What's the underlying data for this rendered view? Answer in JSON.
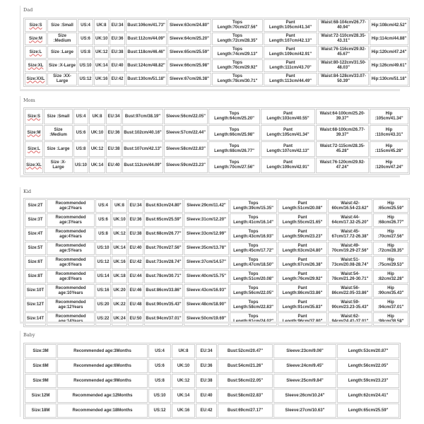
{
  "sections": [
    {
      "label": "Dad",
      "rows": [
        [
          "Size:S",
          "Size :Small",
          "US:4",
          "UK:8",
          "EU:34",
          "Bust:106cm/41.73\"",
          "Sleeve:63cm/24.80\"",
          "Tops Length:70cm/27.56\"",
          "Pant Length:105cm/41.34\"",
          "Waist:68-104cm/26.77-40.94\"",
          "Hip:108cm/42.52\""
        ],
        [
          "Size:M",
          "Size :Medium",
          "US:6",
          "UK:10",
          "EU:36",
          "Bust:112cm/44.09\"",
          "Sleeve:64cm/25.20\"",
          "Tops Length:72cm/28.35\"",
          "Pant Length:107cm/42.13\"",
          "Waist:72-110cm/28.35-43.31\"",
          "Hip:114cm/44.88\""
        ],
        [
          "Size:L",
          "Size :Large",
          "US:8",
          "UK:12",
          "EU:38",
          "Bust:118cm/46.46\"",
          "Sleeve:65cm/25.59\"",
          "Tops Length:74cm/29.13\"",
          "Pant Length:109cm/42.91\"",
          "Waist:76-116cm/29.92-45.67\"",
          "Hip:120cm/47.24\""
        ],
        [
          "Size:XL",
          "Size :X-Large",
          "US:10",
          "UK:14",
          "EU:40",
          "Bust:124cm/48.82\"",
          "Sleeve:66cm/25.98\"",
          "Tops Length:76cm/29.92\"",
          "Pant Length:111cm/43.70\"",
          "Waist:80-122cm/31.50-48.03\"",
          "Hip:126cm/49.61\""
        ],
        [
          "Size:XXL",
          "Size :XX-Large",
          "US:12",
          "UK:16",
          "EU:42",
          "Bust:130cm/51.18\"",
          "Sleeve:67cm/26.38\"",
          "Tops Length:78cm/30.71\"",
          "Pant Length:113cm/44.49\"",
          "Waist:84-128cm/33.07-50.39\"",
          "Hip:130cm/51.18\""
        ]
      ]
    },
    {
      "label": "Mom",
      "rows": [
        [
          "Size:S",
          "Size :Small",
          "US:4",
          "UK:8",
          "EU:34",
          "Bust:97cm/38.19\"",
          "Sleeve:56cm/22.05\"",
          "Tops Length:64cm/25.20\"",
          "Pant Length:103cm/40.55\"",
          "Waist:64-100cm/25.20-39.37\"",
          "Hip :105cm/41.34\""
        ],
        [
          "Size:M",
          "Size :Medium",
          "US:6",
          "UK:10",
          "EU:36",
          "Bust:102cm/40.16\"",
          "Sleeve:57cm/22.44\"",
          "Tops Length:66cm/25.98\"",
          "Pant Length:105cm/41.34\"",
          "Waist:68-100cm/26.77-39.37\"",
          "Hip :110cm/43.31\""
        ],
        [
          "Size:L",
          "Size :Large",
          "US:8",
          "UK:12",
          "EU:38",
          "Bust:107cm/42.13\"",
          "Sleeve:58cm/22.83\"",
          "Tops Length:68cm/26.77\"",
          "Pant Length:107cm/42.13\"",
          "Waist:72-115cm/28.35-45.28\"",
          "Hip :115cm/45.28\""
        ],
        [
          "Size:XL",
          "Size :X-Large",
          "US:10",
          "UK:14",
          "EU:40",
          "Bust:112cm/44.09\"",
          "Sleeve:59cm/23.23\"",
          "Tops Length:70cm/27.56\"",
          "Pant Length:109cm/42.91\"",
          "Waist:76-120cm/29.92-47.24\"",
          "Hip :120cm/47.24\""
        ]
      ]
    },
    {
      "label": "Kid",
      "rows": [
        [
          "Size:2T",
          "Recommended age:2Years",
          "US:4",
          "UK:8",
          "EU:34",
          "Bust:63cm/24.80\"",
          "Sleeve:29cm/11.42\"",
          "Tops Length:39cm/15.35\"",
          "Pant Length:51cm/20.08\"",
          "Waist:42-60cm/16.54-23.62\"",
          "Hip :65cm/25.59\""
        ],
        [
          "Size:3T",
          "Recommended age:3Years",
          "US:6",
          "UK:10",
          "EU:36",
          "Bust:65cm/25.59\"",
          "Sleeve:31cm/12.20\"",
          "Tops Length:41cm/16.14\"",
          "Pant Length:55cm/21.65\"",
          "Waist:44-64cm/17.32-25.20\"",
          "Hip :68cm/26.77\""
        ],
        [
          "Size:4T",
          "Recommended age:4Years",
          "US:8",
          "UK:12",
          "EU:38",
          "Bust:68cm/26.77\"",
          "Sleeve:33cm/12.99\"",
          "Tops Length:43cm/16.93\"",
          "Pant Length:59cm/23.23\"",
          "Waist:45-67cm/17.72-26.38\"",
          "Hip :70cm/27.56\""
        ],
        [
          "Size:5T",
          "Recommended age:5Years",
          "US:10",
          "UK:14",
          "EU:40",
          "Bust:70cm/27.56\"",
          "Sleeve:35cm/13.78\"",
          "Tops Length:45cm/17.72\"",
          "Pant Length:63cm/24.80\"",
          "Waist:49-70cm/19.29-27.56\"",
          "Hip :72cm/28.35\""
        ],
        [
          "Size:6T",
          "Recommended age:6Years",
          "US:12",
          "UK:16",
          "EU:42",
          "Bust:73cm/28.74\"",
          "Sleeve:37cm/14.57\"",
          "Tops Length:47cm/18.50\"",
          "Pant Length:67cm/26.38\"",
          "Waist:51-73cm/20.08-28.74\"",
          "Hip :75cm/29.53\""
        ],
        [
          "Size:8T",
          "Recommended age:8Years",
          "US:14",
          "UK:18",
          "EU:44",
          "Bust:78cm/30.71\"",
          "Sleeve:40cm/15.75\"",
          "Tops Length:51cm/20.08\"",
          "Pant Length:76cm/29.92\"",
          "Waist:54-78cm/21.26-30.71\"",
          "Hip :82cm/32.28\""
        ],
        [
          "Size:10T",
          "Recommended age:10Years",
          "US:16",
          "UK:20",
          "EU:46",
          "Bust:86cm/33.86\"",
          "Sleeve:43cm/16.93\"",
          "Tops Length:56cm/22.05\"",
          "Pant Length:86cm/33.86\"",
          "Waist:56-86cm/22.05-33.86\"",
          "Hip :90cm/35.43\""
        ],
        [
          "Size:12T",
          "Recommended age:12Years",
          "US:20",
          "UK:22",
          "EU:48",
          "Bust:90cm/35.43\"",
          "Sleeve:48cm/18.90\"",
          "Tops Length:58cm/22.83\"",
          "Pant Length:91cm/35.83\"",
          "Waist:59-90cm/23.23-35.43\"",
          "Hip :94cm/37.01\""
        ],
        [
          "Size:14T",
          "Recommended age:14Years",
          "US:22",
          "UK:24",
          "EU:50",
          "Bust:94cm/37.01\"",
          "Sleeve:50cm/19.69\"",
          "Tops Length:61cm/24.02\"",
          "Pant Length:96cm/37.80\"",
          "Waist:62-94cm/24.41-37.01\"",
          "Hip :98cm/38.58\""
        ]
      ]
    },
    {
      "label": "Baby",
      "rows": [
        [
          "Size:3M",
          "Recommended age:3Months",
          "US:4",
          "UK:8",
          "EU:34",
          "Bust:52cm/20.47\"",
          "Sleeve:23cm/9.06\"",
          "Length:53cm/20.87\""
        ],
        [
          "Size:6M",
          "Recommended age:6Months",
          "US:6",
          "UK:10",
          "EU:36",
          "Bust:54cm/21.26\"",
          "Sleeve:24cm/9.45\"",
          "Length:56cm/22.05\""
        ],
        [
          "Size:9M",
          "Recommended age:9Months",
          "US:8",
          "UK:12",
          "EU:38",
          "Bust:56cm/22.05\"",
          "Sleeve:25cm/9.84\"",
          "Length:59cm/23.23\""
        ],
        [
          "Size:12M",
          "Recommended age:12Months",
          "US:10",
          "UK:14",
          "EU:40",
          "Bust:58cm/22.83\"",
          "Sleeve:26cm/10.24\"",
          "Length:62cm/24.41\""
        ],
        [
          "Size:18M",
          "Recommended age:18Months",
          "US:12",
          "UK:16",
          "EU:42",
          "Bust:69cm/27.17\"",
          "Sleeve:27cm/10.63\"",
          "Length:65cm/25.59\""
        ]
      ]
    }
  ]
}
